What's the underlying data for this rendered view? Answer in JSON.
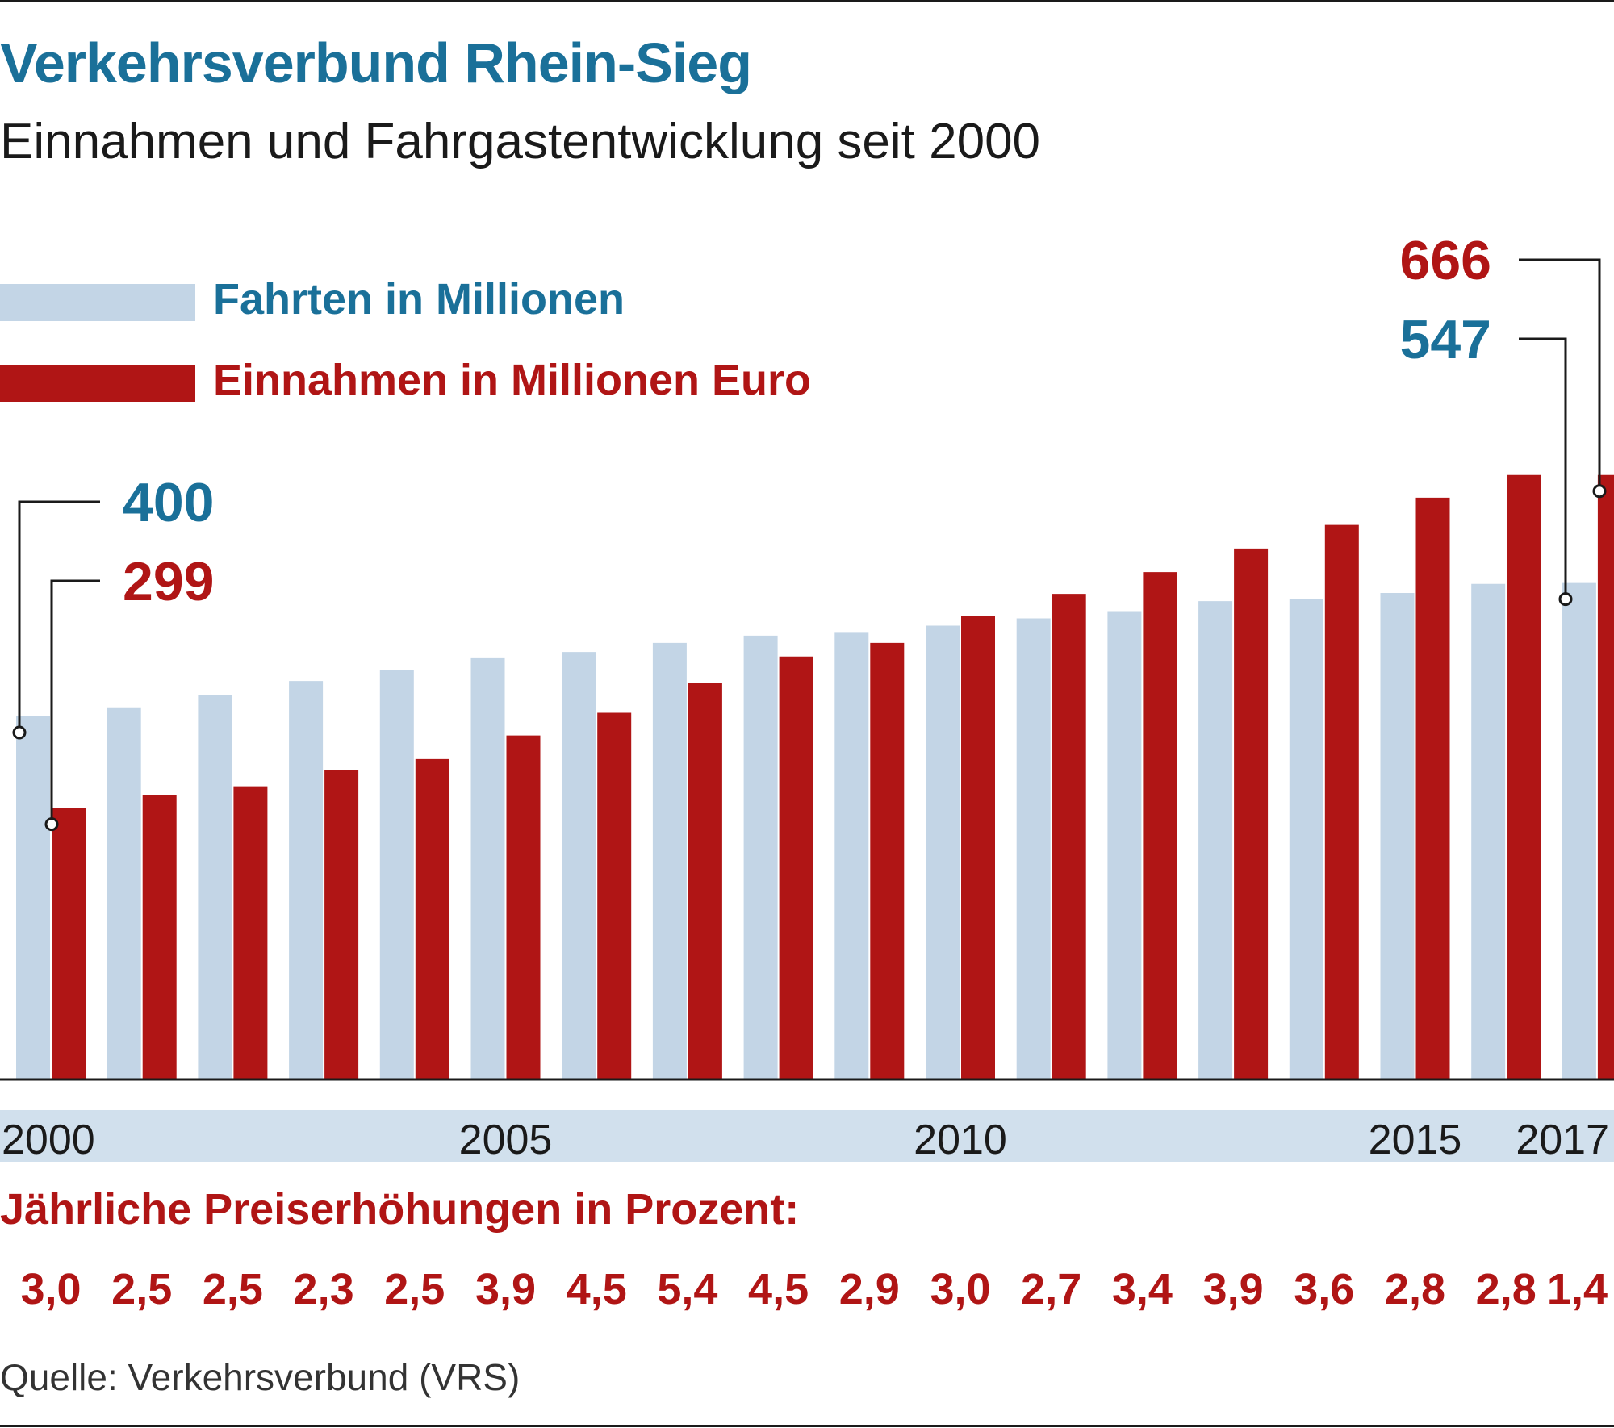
{
  "colors": {
    "title": "#1a7099",
    "trips": "#c3d5e6",
    "revenue": "#b01515",
    "axis_band": "#d1e0ed"
  },
  "header": {
    "title": "Verkehrsverbund Rhein-Sieg",
    "subtitle": "Einnahmen und Fahrgastentwicklung seit 2000"
  },
  "legend": {
    "trips_label": "Fahrten in Millionen",
    "revenue_label": "Einnahmen in Millionen Euro"
  },
  "chart_data": {
    "type": "bar",
    "x": [
      2000,
      2001,
      2002,
      2003,
      2004,
      2005,
      2006,
      2007,
      2008,
      2009,
      2010,
      2011,
      2012,
      2013,
      2014,
      2015,
      2016,
      2017
    ],
    "x_tick_labels": [
      "2000",
      "2005",
      "2010",
      "2015",
      "2017"
    ],
    "series": [
      {
        "name": "Fahrten in Millionen",
        "color": "#c3d5e6",
        "values": [
          400,
          410,
          424,
          439,
          451,
          465,
          471,
          481,
          489,
          493,
          500,
          508,
          516,
          527,
          529,
          536,
          546,
          547
        ]
      },
      {
        "name": "Einnahmen in Millionen Euro",
        "color": "#b01515",
        "values": [
          299,
          313,
          323,
          341,
          353,
          379,
          404,
          437,
          466,
          481,
          511,
          535,
          559,
          585,
          611,
          641,
          666,
          666
        ]
      }
    ],
    "callouts": [
      {
        "value": "400",
        "series": 0,
        "index": 0
      },
      {
        "value": "299",
        "series": 1,
        "index": 0
      },
      {
        "value": "666",
        "series": 1,
        "index": 17
      },
      {
        "value": "547",
        "series": 0,
        "index": 17
      }
    ],
    "ylim": [
      0,
      700
    ],
    "grid": false,
    "legend_position": "top-left"
  },
  "price_increases": {
    "heading": "Jährliche Preiserhöhungen in Prozent:",
    "values": [
      "3,0",
      "2,5",
      "2,5",
      "2,3",
      "2,5",
      "3,9",
      "4,5",
      "5,4",
      "4,5",
      "2,9",
      "3,0",
      "2,7",
      "3,4",
      "3,9",
      "3,6",
      "2,8",
      "2,8",
      "1,4"
    ]
  },
  "source": "Quelle: Verkehrsverbund (VRS)"
}
